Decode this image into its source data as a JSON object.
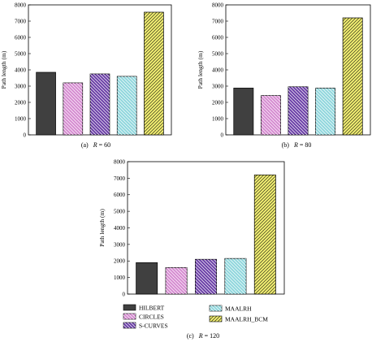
{
  "series_styles": [
    {
      "name": "HILBERT",
      "fill": "#404040",
      "hatch": "none"
    },
    {
      "name": "CIRCLES",
      "fill": "#d58ad0",
      "hatch": "back"
    },
    {
      "name": "S-CURVES",
      "fill": "#6a3ea6",
      "hatch": "back"
    },
    {
      "name": "MAALRH",
      "fill": "#8fd6dc",
      "hatch": "back"
    },
    {
      "name": "MAALRH_BCM",
      "fill": "#f2ef72",
      "hatch": "fwd"
    }
  ],
  "chart_data": [
    {
      "type": "bar",
      "caption": "(a)  R = 60",
      "caption_prefix": "(a)",
      "caption_var": "R",
      "caption_value": "= 60",
      "ylabel": "Path length (m)",
      "ylim": [
        0,
        8000
      ],
      "yticks": [
        "0",
        "1000",
        "2000",
        "3000",
        "4000",
        "5000",
        "6000",
        "7000",
        "8000"
      ],
      "categories": [
        "HILBERT",
        "CIRCLES",
        "S-CURVES",
        "MAALRH",
        "MAALRH_BCM"
      ],
      "values": [
        3850,
        3200,
        3750,
        3600,
        7550
      ]
    },
    {
      "type": "bar",
      "caption": "(b)  R = 80",
      "caption_prefix": "(b)",
      "caption_var": "R",
      "caption_value": "= 80",
      "ylabel": "Path length (m)",
      "ylim": [
        0,
        8000
      ],
      "yticks": [
        "0",
        "1000",
        "2000",
        "3000",
        "4000",
        "5000",
        "6000",
        "7000",
        "8000"
      ],
      "categories": [
        "HILBERT",
        "CIRCLES",
        "S-CURVES",
        "MAALRH",
        "MAALRH_BCM"
      ],
      "values": [
        2880,
        2420,
        2960,
        2880,
        7200
      ]
    },
    {
      "type": "bar",
      "caption": "(c)  R = 120",
      "caption_prefix": "(c)",
      "caption_var": "R",
      "caption_value": "= 120",
      "ylabel": "Path length (m)",
      "ylim": [
        0,
        8000
      ],
      "yticks": [
        "0",
        "1000",
        "2000",
        "3000",
        "4000",
        "5000",
        "6000",
        "7000",
        "8000"
      ],
      "categories": [
        "HILBERT",
        "CIRCLES",
        "S-CURVES",
        "MAALRH",
        "MAALRH_BCM"
      ],
      "values": [
        1900,
        1600,
        2100,
        2150,
        7200
      ]
    }
  ],
  "legend": {
    "entries": [
      "HILBERT",
      "CIRCLES",
      "S-CURVES",
      "MAALRH",
      "MAALRH_BCM"
    ]
  }
}
